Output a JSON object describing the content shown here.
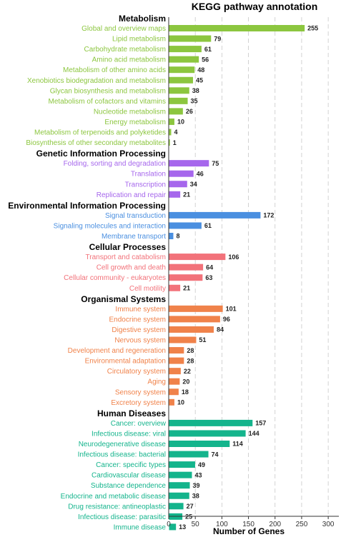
{
  "chart_data": {
    "type": "bar",
    "orientation": "horizontal",
    "title": "KEGG pathway annotation",
    "xlabel": "Number of Genes",
    "xlim": [
      0,
      320
    ],
    "xticks": [
      0,
      50,
      100,
      150,
      200,
      250,
      300
    ],
    "grid": "vertical dashed",
    "groups": [
      {
        "name": "Metabolism",
        "color": "#8cc63f",
        "categories": [
          "Global and overview maps",
          "Lipid metabolism",
          "Carbohydrate metabolism",
          "Amino acid metabolism",
          "Metabolism of other amino acids",
          "Xenobiotics biodegradation and metabolism",
          "Glycan biosynthesis and metabolism",
          "Metabolism of cofactors and vitamins",
          "Nucleotide metabolism",
          "Energy metabolism",
          "Metabolism of terpenoids and polyketides",
          "Biosynthesis of other secondary metabolites"
        ],
        "values": [
          255,
          79,
          61,
          56,
          48,
          45,
          38,
          35,
          26,
          10,
          4,
          1
        ]
      },
      {
        "name": "Genetic Information Processing",
        "color": "#a667ec",
        "categories": [
          "Folding, sorting and degradation",
          "Translation",
          "Transcription",
          "Replication and repair"
        ],
        "values": [
          75,
          46,
          34,
          21
        ]
      },
      {
        "name": "Environmental Information Processing",
        "color": "#4a8fe0",
        "categories": [
          "Signal transduction",
          "Signaling molecules and interaction",
          "Membrane transport"
        ],
        "values": [
          172,
          61,
          8
        ]
      },
      {
        "name": "Cellular Processes",
        "color": "#f2727a",
        "categories": [
          "Transport and catabolism",
          "Cell growth and death",
          "Cellular community - eukaryotes",
          "Cell motility"
        ],
        "values": [
          106,
          64,
          63,
          21
        ]
      },
      {
        "name": "Organismal Systems",
        "color": "#f0824a",
        "categories": [
          "Immune system",
          "Endocrine system",
          "Digestive system",
          "Nervous system",
          "Development and regeneration",
          "Environmental adaptation",
          "Circulatory system",
          "Aging",
          "Sensory system",
          "Excretory system"
        ],
        "values": [
          101,
          96,
          84,
          51,
          28,
          28,
          22,
          20,
          18,
          10
        ]
      },
      {
        "name": "Human Diseases",
        "color": "#14b48c",
        "categories": [
          "Cancer: overview",
          "Infectious disease: viral",
          "Neurodegenerative disease",
          "Infectious disease: bacterial",
          "Cancer: specific types",
          "Cardiovascular disease",
          "Substance dependence",
          "Endocrine and metabolic disease",
          "Drug resistance: antineoplastic",
          "Infectious disease: parasitic",
          "Immune disease"
        ],
        "values": [
          157,
          144,
          114,
          74,
          49,
          43,
          39,
          38,
          27,
          25,
          13
        ]
      }
    ]
  }
}
